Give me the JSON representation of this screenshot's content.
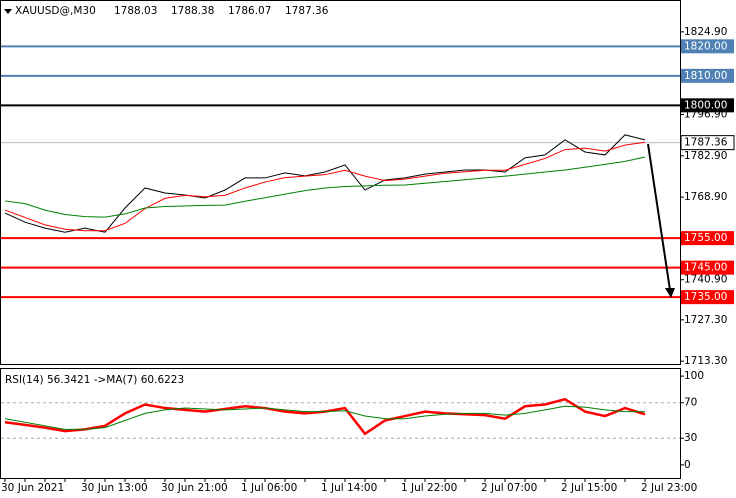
{
  "chart_data": [
    {
      "type": "line",
      "header": {
        "symbol": "XAUUSD@,M30",
        "ohlc": [
          "1788.03",
          "1788.38",
          "1786.07",
          "1787.36"
        ]
      },
      "categories": [
        "30 Jun 2021",
        null,
        null,
        null,
        "30 Jun 13:00",
        null,
        null,
        null,
        "30 Jun 21:00",
        null,
        null,
        null,
        "1 Jul 06:00",
        null,
        null,
        null,
        "1 Jul 14:00",
        null,
        null,
        null,
        "1 Jul 22:00",
        null,
        null,
        null,
        "2 Jul 07:00",
        null,
        null,
        null,
        "2 Jul 15:00",
        null,
        null,
        null,
        "2 Jul 23:00"
      ],
      "series": [
        {
          "color": "#000000",
          "values": [
            1763.5,
            1760.4,
            1758.4,
            1757.0,
            1758.4,
            1757.0,
            1765.2,
            1772.0,
            1770.3,
            1769.6,
            1768.6,
            1771.3,
            1775.4,
            1775.4,
            1777.1,
            1776.1,
            1777.4,
            1779.8,
            1771.3,
            1774.7,
            1775.4,
            1776.7,
            1777.4,
            1778.1,
            1778.1,
            1777.4,
            1782.2,
            1783.2,
            1788.3,
            1784.2,
            1783.2,
            1790.0,
            1788.3
          ]
        },
        {
          "color": "#ff0000",
          "values": [
            1764.5,
            1762,
            1759.5,
            1758,
            1757.5,
            1757.5,
            1760,
            1765,
            1768.5,
            1769.5,
            1769,
            1769.5,
            1772,
            1774,
            1775.5,
            1776,
            1776.5,
            1778,
            1776,
            1774.5,
            1775,
            1776,
            1777,
            1777.5,
            1778,
            1778,
            1780,
            1782,
            1785,
            1785.5,
            1784.5,
            1786.5,
            1787.5
          ]
        },
        {
          "color": "#008000",
          "values": [
            1767.6,
            1766.7,
            1764.5,
            1763,
            1762.3,
            1762.1,
            1763.2,
            1765.2,
            1765.7,
            1765.9,
            1766.1,
            1766.2,
            1767.5,
            1768.7,
            1769.9,
            1771.1,
            1772,
            1772.5,
            1772.7,
            1772.9,
            1773,
            1773.6,
            1774.2,
            1774.8,
            1775.4,
            1776,
            1776.7,
            1777.4,
            1778.1,
            1779,
            1780,
            1781,
            1782.5
          ]
        }
      ],
      "ylim": [
        1712,
        1835.7
      ],
      "yticks": [
        {
          "value": 1824.9,
          "label": "1824.90"
        },
        {
          "value": 1796.9,
          "label": "1796.90"
        },
        {
          "value": 1782.9,
          "label": "1782.90"
        },
        {
          "value": 1768.9,
          "label": "1768.90"
        },
        {
          "value": 1740.9,
          "label": "1740.90"
        },
        {
          "value": 1727.3,
          "label": "1727.30"
        },
        {
          "value": 1713.3,
          "label": "1713.30"
        }
      ],
      "levels": [
        {
          "value": 1820,
          "label": "1820.00",
          "color": "#4f81b4"
        },
        {
          "value": 1810,
          "label": "1810.00",
          "color": "#4f81b4"
        },
        {
          "value": 1800,
          "label": "1800.00",
          "color": "#000000"
        },
        {
          "value": 1755,
          "label": "1755.00",
          "color": "#ff0000"
        },
        {
          "value": 1745,
          "label": "1745.00",
          "color": "#ff0000"
        },
        {
          "value": 1735,
          "label": "1735.00",
          "color": "#ff0000"
        }
      ],
      "last": {
        "value": 1787.36,
        "label": "1787.36"
      }
    },
    {
      "type": "line",
      "title": "RSI(14) 56.3421  ->MA(7) 60.6223",
      "series": [
        {
          "color": "#ff0000",
          "values": [
            48,
            45,
            42,
            38,
            40,
            44,
            58,
            68,
            64,
            62,
            60,
            63,
            66,
            64,
            60,
            58,
            60,
            64,
            35,
            50,
            55,
            60,
            58,
            57,
            56,
            52,
            66,
            68,
            74,
            60,
            55,
            64,
            57
          ]
        },
        {
          "color": "#008000",
          "values": [
            52,
            48,
            44,
            40,
            40,
            42,
            50,
            58,
            62,
            64,
            63,
            62,
            63,
            64,
            62,
            60,
            60,
            61,
            55,
            52,
            52,
            55,
            57,
            58,
            58,
            56,
            58,
            62,
            66,
            65,
            62,
            60,
            60
          ]
        }
      ],
      "ylim": [
        -14.8,
        108
      ],
      "yticks": [
        100,
        70,
        30,
        0
      ],
      "dashed": [
        70,
        30
      ]
    }
  ]
}
